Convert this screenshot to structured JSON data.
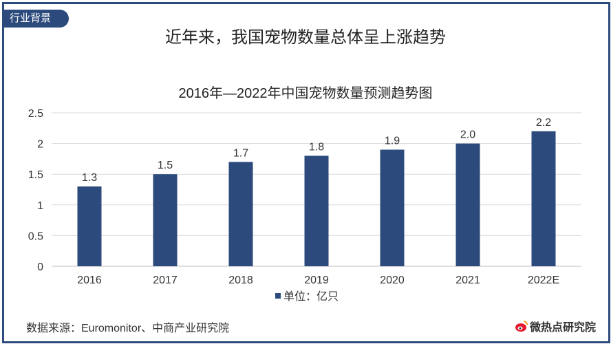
{
  "tag": "行业背景",
  "headline": "近年来，我国宠物数量总体呈上涨趋势",
  "source": "数据来源：Euromonitor、中商产业研究院",
  "brand": "微热点研究院",
  "colors": {
    "bar": "#2c4a7c",
    "frame": "#2c4a7c",
    "grid": "#d9d9d9",
    "text": "#333333"
  },
  "chart_data": {
    "type": "bar",
    "title": "2016年—2022年中国宠物数量预测趋势图",
    "categories": [
      "2016",
      "2017",
      "2018",
      "2019",
      "2020",
      "2021",
      "2022E"
    ],
    "series": [
      {
        "name": "单位：亿只",
        "values": [
          1.3,
          1.5,
          1.7,
          1.8,
          1.9,
          2.0,
          2.2
        ],
        "labels": [
          "1.3",
          "1.5",
          "1.7",
          "1.8",
          "1.9",
          "2.0",
          "2.2"
        ]
      }
    ],
    "yticks": [
      "0",
      "0.5",
      "1",
      "1.5",
      "2",
      "2.5"
    ],
    "ylim": [
      0,
      2.5
    ],
    "grid": true,
    "legend": "bottom"
  }
}
